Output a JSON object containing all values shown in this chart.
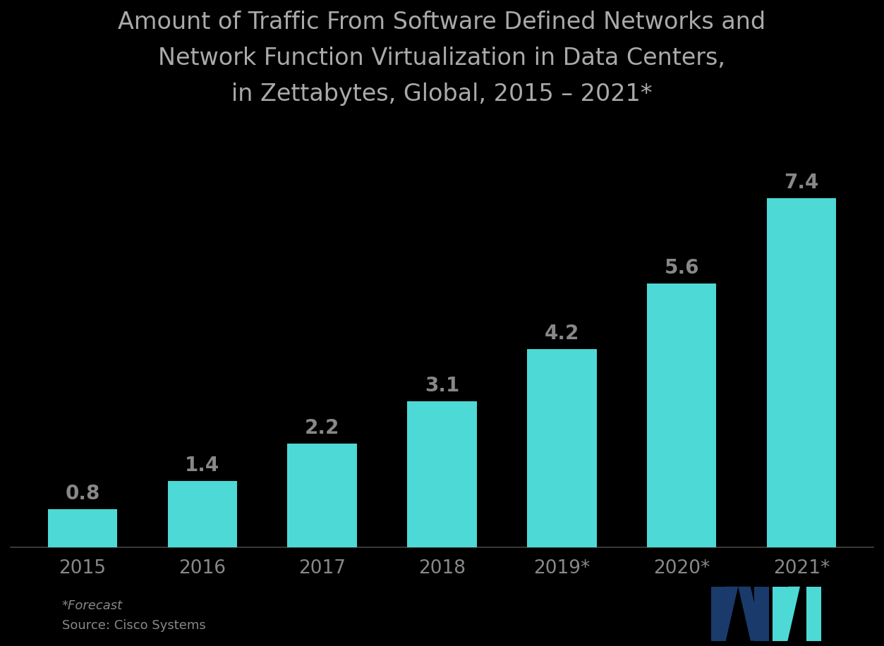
{
  "title_line1": "Amount of Traffic From Software Defined Networks and",
  "title_line2": "Network Function Virtualization in Data Centers,",
  "title_line3": "in Zettabytes, Global, 2015 – 2021*",
  "categories": [
    "2015",
    "2016",
    "2017",
    "2018",
    "2019*",
    "2020*",
    "2021*"
  ],
  "values": [
    0.8,
    1.4,
    2.2,
    3.1,
    4.2,
    5.6,
    7.4
  ],
  "bar_color": "#4DD9D5",
  "background_color": "#000000",
  "text_color": "#888888",
  "title_color": "#aaaaaa",
  "label_fontsize": 20,
  "title_fontsize": 24,
  "tick_fontsize": 19,
  "footnote_line1": "*Forecast",
  "footnote_line2": "Source: Cisco Systems",
  "ylim": [
    0,
    8.8
  ],
  "logo_dark_blue": "#1a3a6b",
  "logo_teal": "#4DD9D5"
}
